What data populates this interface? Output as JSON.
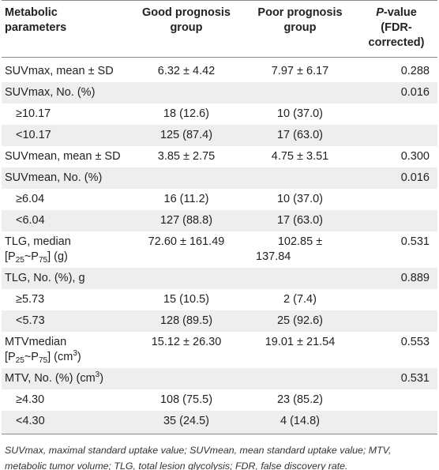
{
  "table": {
    "headers": {
      "col1_line1": "Metabolic",
      "col1_line2": "parameters",
      "col2_line1": "Good prognosis",
      "col2_line2": "group",
      "col3_line1": "Poor prognosis",
      "col3_line2": "group",
      "col4_p": "P",
      "col4_line1_rest": "-value",
      "col4_line2": "(FDR-corrected)"
    },
    "rows": [
      {
        "label": "SUVmax, mean ± SD",
        "good": "6.32 ± 4.42",
        "poor": "7.97 ± 6.17",
        "p": "0.288"
      },
      {
        "label": "SUVmax, No. (%)",
        "good": "",
        "poor": "",
        "p": "0.016"
      },
      {
        "label": "≥10.17",
        "good": "18 (12.6)",
        "poor": "10 (37.0)",
        "p": ""
      },
      {
        "label": "<10.17",
        "good": "125 (87.4)",
        "poor": "17 (63.0)",
        "p": ""
      },
      {
        "label": "SUVmean, mean ± SD",
        "good": "3.85 ± 2.75",
        "poor": "4.75 ± 3.51",
        "p": "0.300"
      },
      {
        "label": "SUVmean, No. (%)",
        "good": "",
        "poor": "",
        "p": "0.016"
      },
      {
        "label": "≥6.04",
        "good": "16 (11.2)",
        "poor": "10 (37.0)",
        "p": ""
      },
      {
        "label": "<6.04",
        "good": "127 (88.8)",
        "poor": "17 (63.0)",
        "p": ""
      },
      {
        "label_line1": "TLG, median",
        "label_pre": "[P",
        "label_sub1": "25",
        "label_mid": "~P",
        "label_sub2": "75",
        "label_post": "] (g)",
        "good": "72.60 ± 161.49",
        "poor_line1": "102.85 ±",
        "poor_line2": "137.84",
        "p": "0.531"
      },
      {
        "label": "TLG, No. (%), g",
        "good": "",
        "poor": "",
        "p": "0.889"
      },
      {
        "label": "≥5.73",
        "good": "15 (10.5)",
        "poor": "2 (7.4)",
        "p": ""
      },
      {
        "label": "<5.73",
        "good": "128 (89.5)",
        "poor": "25 (92.6)",
        "p": ""
      },
      {
        "label_line1": "MTVmedian",
        "label_pre": "[P",
        "label_sub1": "25",
        "label_mid": "~P",
        "label_sub2": "75",
        "label_post": "] (cm",
        "label_sup": "3",
        "label_end": ")",
        "good": "15.12 ± 26.30",
        "poor": "19.01 ± 21.54",
        "p": "0.553"
      },
      {
        "label": "MTV, No. (%) (cm",
        "label_sup": "3",
        "label_end": ")",
        "good": "",
        "poor": "",
        "p": "0.531"
      },
      {
        "label": "≥4.30",
        "good": "108 (75.5)",
        "poor": "23 (85.2)",
        "p": ""
      },
      {
        "label": "<4.30",
        "good": "35 (24.5)",
        "poor": "4 (14.8)",
        "p": ""
      }
    ]
  },
  "footnote": "SUVmax, maximal standard uptake value; SUVmean, mean standard uptake value; MTV, metabolic tumor volume; TLG, total lesion glycolysis; FDR, false discovery rate."
}
